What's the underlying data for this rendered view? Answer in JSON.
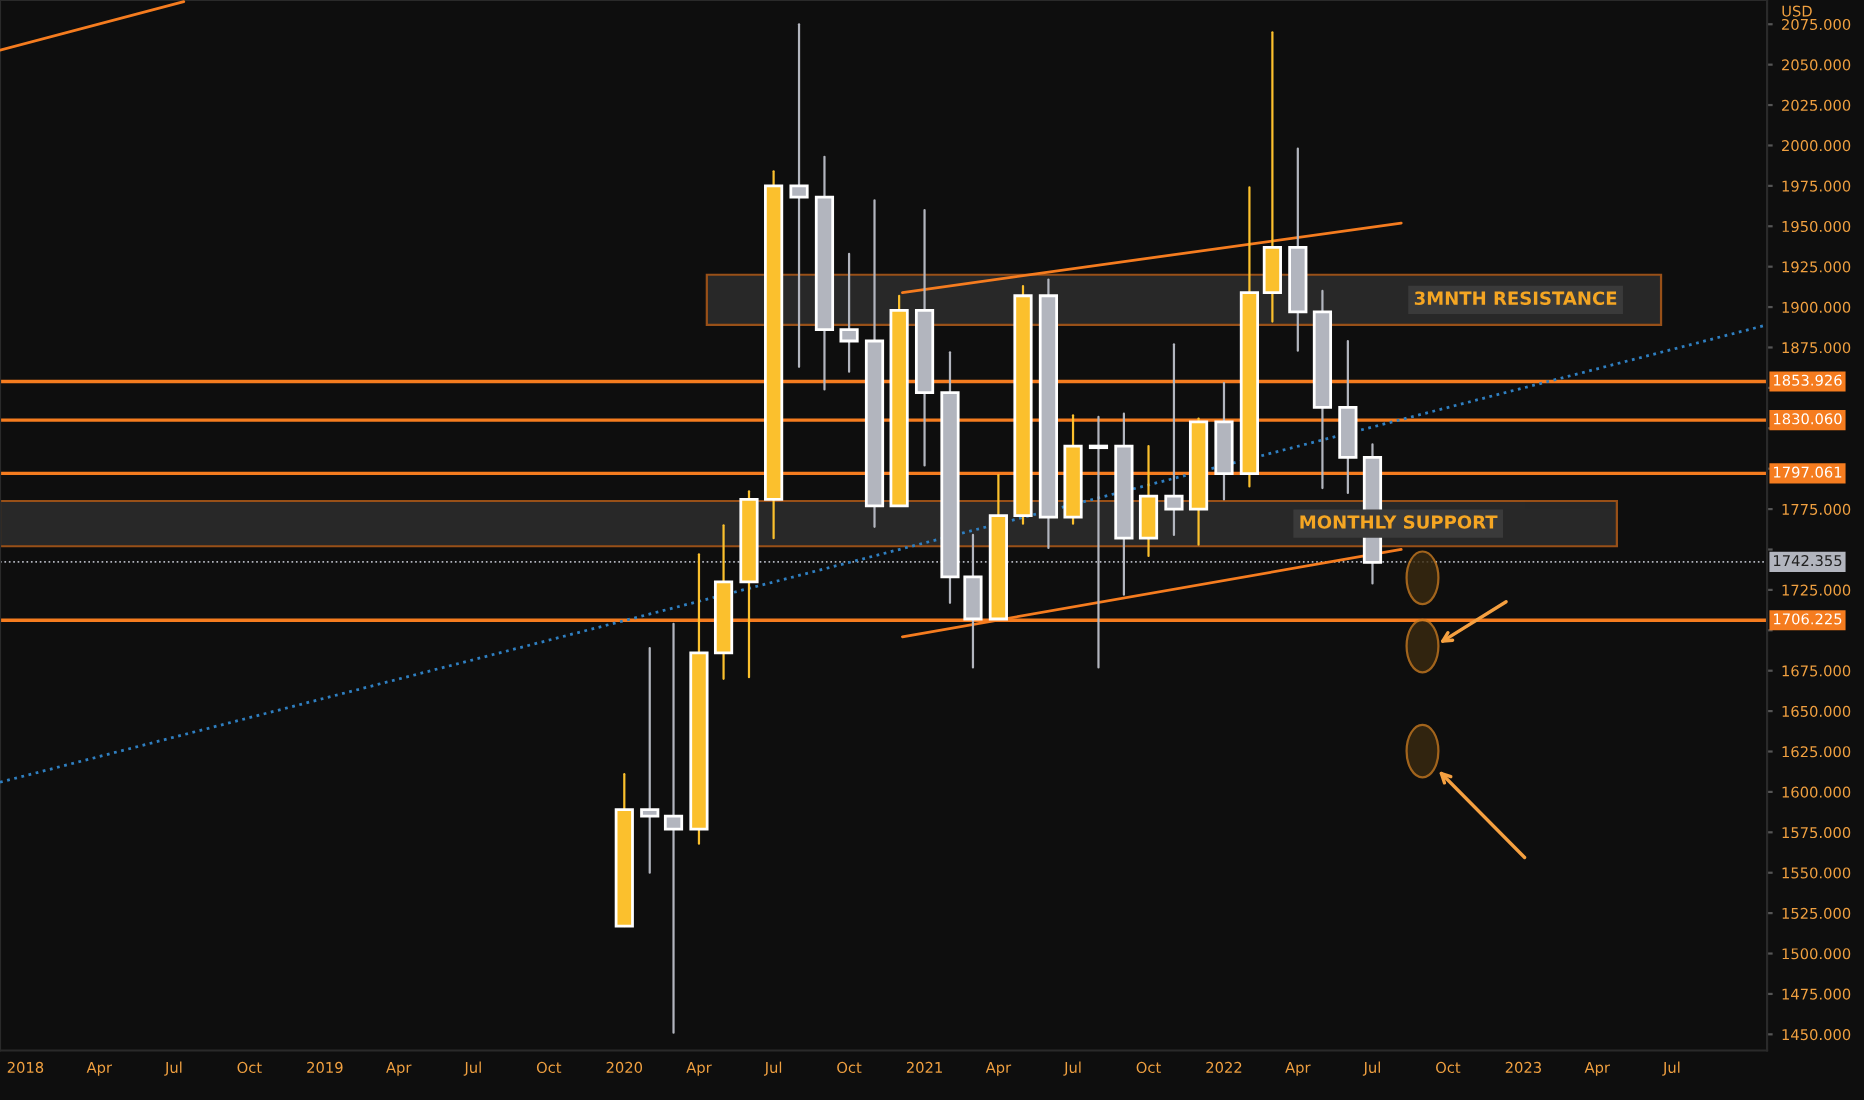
{
  "chart_data": {
    "type": "candlestick",
    "ylabel": "USD",
    "x": [
      "2020-01",
      "2020-02",
      "2020-03",
      "2020-04",
      "2020-05",
      "2020-06",
      "2020-07",
      "2020-08",
      "2020-09",
      "2020-10",
      "2020-11",
      "2020-12",
      "2021-01",
      "2021-02",
      "2021-03",
      "2021-04",
      "2021-05",
      "2021-06",
      "2021-07",
      "2021-08",
      "2021-09",
      "2021-10",
      "2021-11",
      "2021-12",
      "2022-01",
      "2022-02",
      "2022-03",
      "2022-04",
      "2022-05",
      "2022-06",
      "2022-07"
    ],
    "ohlc": [
      [
        1517,
        1611,
        1517,
        1589
      ],
      [
        1589,
        1689,
        1550,
        1585
      ],
      [
        1585,
        1704,
        1451,
        1577
      ],
      [
        1577,
        1747,
        1568,
        1686
      ],
      [
        1686,
        1765,
        1670,
        1730
      ],
      [
        1730,
        1786,
        1671,
        1781
      ],
      [
        1781,
        1984,
        1757,
        1975
      ],
      [
        1975,
        2075,
        1863,
        1968
      ],
      [
        1968,
        1993,
        1849,
        1886
      ],
      [
        1886,
        1933,
        1860,
        1879
      ],
      [
        1879,
        1966,
        1764,
        1777
      ],
      [
        1777,
        1907,
        1777,
        1898
      ],
      [
        1898,
        1960,
        1802,
        1847
      ],
      [
        1847,
        1872,
        1717,
        1733
      ],
      [
        1733,
        1759,
        1677,
        1707
      ],
      [
        1707,
        1796,
        1707,
        1771
      ],
      [
        1771,
        1913,
        1766,
        1907
      ],
      [
        1907,
        1917,
        1751,
        1770
      ],
      [
        1770,
        1833,
        1766,
        1814
      ],
      [
        1814,
        1832,
        1677,
        1813
      ],
      [
        1814,
        1834,
        1722,
        1757
      ],
      [
        1757,
        1814,
        1746,
        1783
      ],
      [
        1783,
        1877,
        1759,
        1775
      ],
      [
        1775,
        1831,
        1753,
        1829
      ],
      [
        1829,
        1853,
        1781,
        1797
      ],
      [
        1797,
        1974,
        1789,
        1909
      ],
      [
        1909,
        2070,
        1891,
        1937
      ],
      [
        1937,
        1998,
        1873,
        1897
      ],
      [
        1897,
        1910,
        1788,
        1838
      ],
      [
        1838,
        1879,
        1785,
        1807
      ],
      [
        1807,
        1815,
        1729,
        1742
      ]
    ],
    "colors": [
      "#fbc02d",
      "#b2b5be",
      "#b2b5be",
      "#fbc02d",
      "#fbc02d",
      "#fbc02d",
      "#fbc02d",
      "#b2b5be",
      "#b2b5be",
      "#b2b5be",
      "#b2b5be",
      "#fbc02d",
      "#b2b5be",
      "#b2b5be",
      "#b2b5be",
      "#fbc02d",
      "#fbc02d",
      "#b2b5be",
      "#fbc02d",
      "#b2b5be",
      "#b2b5be",
      "#fbc02d",
      "#b2b5be",
      "#fbc02d",
      "#b2b5be",
      "#fbc02d",
      "#fbc02d",
      "#b2b5be",
      "#b2b5be",
      "#b2b5be",
      "#b2b5be"
    ],
    "series": [
      {
        "type": "line",
        "x": [
          "2020-12-05",
          "2022-08-05"
        ],
        "values": [
          1909,
          1952
        ],
        "color": "#f57c1f",
        "line_style": "solid"
      },
      {
        "type": "line",
        "x": [
          "2020-12-05",
          "2022-08-05"
        ],
        "values": [
          1696,
          1750
        ],
        "color": "#f57c1f",
        "line_style": "solid"
      },
      {
        "type": "line",
        "x": [
          "2017-12-01",
          "2023-10-25"
        ],
        "values": [
          1606,
          1889
        ],
        "color": "#2f7fc1",
        "line_style": "dotted"
      },
      {
        "type": "line",
        "x": [
          "2017-12-01",
          "2018-07-13"
        ],
        "values": [
          2059,
          2089
        ],
        "color": "#f57c1f",
        "line_style": "solid"
      }
    ],
    "ref_lines": [
      {
        "axis": "y",
        "value": 1853.926,
        "label": "1853.926",
        "color": "#f57c1f"
      },
      {
        "axis": "y",
        "value": 1830.06,
        "label": "1830.060",
        "color": "#f57c1f"
      },
      {
        "axis": "y",
        "value": 1797.061,
        "label": "1797.061",
        "color": "#f57c1f"
      },
      {
        "axis": "y",
        "value": 1706.225,
        "label": "1706.225",
        "color": "#f57c1f"
      },
      {
        "axis": "y",
        "value": 1742.355,
        "label": "1742.355",
        "color": "#b2b5be",
        "line_style": "dotted"
      }
    ],
    "bands": [
      {
        "axis": "y",
        "from": 1889,
        "to": 1920,
        "label": "3MNTH RESISTANCE",
        "color": "#3a3a3a"
      },
      {
        "axis": "y",
        "from": 1752,
        "to": 1780,
        "label": "MONTHLY SUPPORT",
        "color": "#3a3a3a"
      }
    ],
    "xlim": [
      "2017-12-01",
      "2023-10-25"
    ],
    "xticks": [
      {
        "value": "2018-01",
        "label": "2018"
      },
      {
        "value": "2018-04",
        "label": "Apr"
      },
      {
        "value": "2018-07",
        "label": "Jul"
      },
      {
        "value": "2018-10",
        "label": "Oct"
      },
      {
        "value": "2019-01",
        "label": "2019"
      },
      {
        "value": "2019-04",
        "label": "Apr"
      },
      {
        "value": "2019-07",
        "label": "Jul"
      },
      {
        "value": "2019-10",
        "label": "Oct"
      },
      {
        "value": "2020-01",
        "label": "2020"
      },
      {
        "value": "2020-04",
        "label": "Apr"
      },
      {
        "value": "2020-07",
        "label": "Jul"
      },
      {
        "value": "2020-10",
        "label": "Oct"
      },
      {
        "value": "2021-01",
        "label": "2021"
      },
      {
        "value": "2021-04",
        "label": "Apr"
      },
      {
        "value": "2021-07",
        "label": "Jul"
      },
      {
        "value": "2021-10",
        "label": "Oct"
      },
      {
        "value": "2022-01",
        "label": "2022"
      },
      {
        "value": "2022-04",
        "label": "Apr"
      },
      {
        "value": "2022-07",
        "label": "Jul"
      },
      {
        "value": "2022-10",
        "label": "Oct"
      },
      {
        "value": "2023-01",
        "label": "2023"
      },
      {
        "value": "2023-04",
        "label": "Apr"
      },
      {
        "value": "2023-07",
        "label": "Jul"
      }
    ],
    "ylim": [
      1440,
      2090
    ],
    "yticks": [
      {
        "value": 1450,
        "label": "1450.000"
      },
      {
        "value": 1475,
        "label": "1475.000"
      },
      {
        "value": 1500,
        "label": "1500.000"
      },
      {
        "value": 1525,
        "label": "1525.000"
      },
      {
        "value": 1550,
        "label": "1550.000"
      },
      {
        "value": 1575,
        "label": "1575.000"
      },
      {
        "value": 1600,
        "label": "1600.000"
      },
      {
        "value": 1625,
        "label": "1625.000"
      },
      {
        "value": 1650,
        "label": "1650.000"
      },
      {
        "value": 1675,
        "label": "1675.000"
      },
      {
        "value": 1700,
        "label": null
      },
      {
        "value": 1725,
        "label": "1725.000"
      },
      {
        "value": 1750,
        "label": null
      },
      {
        "value": 1775,
        "label": "1775.000"
      },
      {
        "value": 1800,
        "label": null
      },
      {
        "value": 1825,
        "label": null
      },
      {
        "value": 1850,
        "label": null
      },
      {
        "value": 1875,
        "label": "1875.000"
      },
      {
        "value": 1900,
        "label": "1900.000"
      },
      {
        "value": 1925,
        "label": "1925.000"
      },
      {
        "value": 1950,
        "label": "1950.000"
      },
      {
        "value": 1975,
        "label": "1975.000"
      },
      {
        "value": 2000,
        "label": "2000.000"
      },
      {
        "value": 2025,
        "label": "2025.000"
      },
      {
        "value": 2050,
        "label": "2050.000"
      },
      {
        "value": 2075,
        "label": "2075.000"
      }
    ],
    "grid": false,
    "legend": false
  }
}
